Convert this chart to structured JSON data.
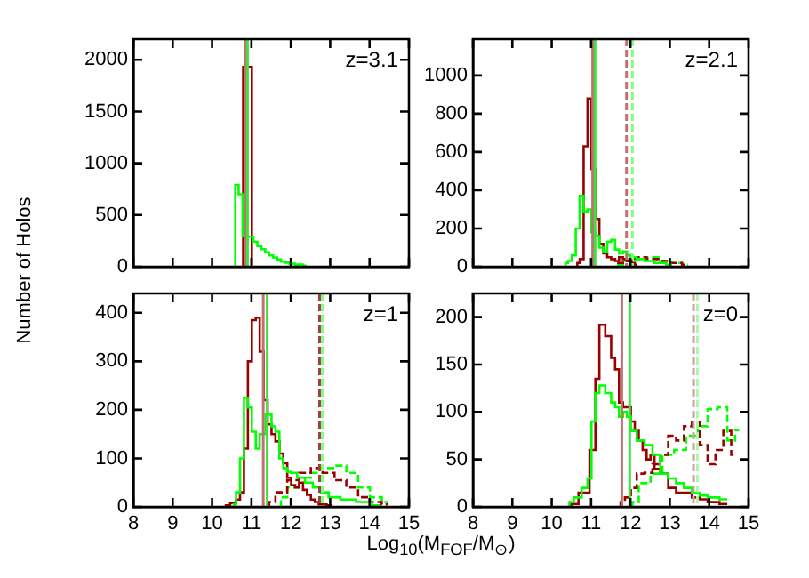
{
  "chart_data": [
    {
      "type": "step",
      "annotations": [
        "z=3.1"
      ],
      "ylabel": "Number of Holos",
      "xlim": [
        8,
        15
      ],
      "xticks": [
        8,
        9,
        10,
        11,
        12,
        13,
        14,
        15
      ],
      "ylim": [
        0,
        2200
      ],
      "yticks": [
        0,
        500,
        1000,
        1500,
        2000
      ],
      "tick_labels": "y",
      "series": [
        {
          "color": "#00ff00",
          "x": [
            10.58,
            10.6,
            10.75,
            10.8,
            11.0,
            11.1,
            11.2,
            11.3,
            11.4,
            11.5,
            11.6,
            11.7,
            11.8,
            11.9,
            12.0,
            12.2,
            12.4
          ],
          "values": [
            0,
            790,
            700,
            300,
            290,
            240,
            200,
            170,
            140,
            110,
            90,
            70,
            50,
            40,
            30,
            20,
            10
          ]
        },
        {
          "color": "#990000",
          "x": [
            10.78,
            10.8,
            10.9,
            11.0,
            11.02
          ],
          "values": [
            0,
            1930,
            1930,
            1930,
            0
          ]
        }
      ],
      "ref_lines": [
        {
          "axis": "x",
          "value": 10.85,
          "color": "#c07070",
          "line_style": "solid"
        },
        {
          "axis": "x",
          "value": 10.9,
          "color": "#40e040",
          "line_style": "solid"
        }
      ]
    },
    {
      "type": "step",
      "annotations": [
        "z=2.1"
      ],
      "xlim": [
        8,
        15
      ],
      "xticks": [
        8,
        9,
        10,
        11,
        12,
        13,
        14,
        15
      ],
      "ylim": [
        0,
        1190
      ],
      "yticks": [
        0,
        200,
        400,
        600,
        800,
        1000
      ],
      "tick_labels": "y",
      "series": [
        {
          "color": "#00ff00",
          "x": [
            10.34,
            10.36,
            10.46,
            10.56,
            10.66,
            10.76,
            10.86,
            10.96,
            11.06,
            11.16,
            11.26,
            11.36,
            11.46,
            11.56,
            11.66,
            11.76,
            11.86,
            11.96,
            12.06,
            12.26,
            12.46,
            12.76,
            13.06
          ],
          "values": [
            0,
            20,
            30,
            60,
            200,
            370,
            290,
            300,
            180,
            160,
            100,
            80,
            130,
            140,
            90,
            70,
            80,
            60,
            50,
            40,
            30,
            20,
            10
          ]
        },
        {
          "color": "#990000",
          "x": [
            10.64,
            10.66,
            10.76,
            10.86,
            10.96,
            11.06,
            11.16,
            11.26,
            11.36,
            11.46,
            11.56,
            11.66,
            11.76,
            11.86,
            11.96,
            12.06,
            12.16
          ],
          "values": [
            0,
            20,
            40,
            630,
            880,
            510,
            250,
            120,
            70,
            50,
            40,
            30,
            50,
            40,
            30,
            20,
            10
          ]
        },
        {
          "color": "#990000",
          "line_style": "dashed",
          "x": [
            11.66,
            11.96,
            12.26,
            12.56,
            12.86,
            13.16,
            13.46
          ],
          "values": [
            20,
            30,
            50,
            40,
            30,
            20,
            10
          ]
        },
        {
          "color": "#00ff00",
          "line_style": "dashed",
          "x": [
            11.66,
            11.96,
            12.26,
            12.56,
            12.86,
            13.16,
            13.46
          ],
          "values": [
            10,
            30,
            40,
            50,
            30,
            20,
            10
          ]
        }
      ],
      "ref_lines": [
        {
          "axis": "x",
          "value": 11.04,
          "color": "#c07070",
          "line_style": "solid"
        },
        {
          "axis": "x",
          "value": 11.1,
          "color": "#40e040",
          "line_style": "solid"
        },
        {
          "axis": "x",
          "value": 11.9,
          "color": "#c07070",
          "line_style": "dashed"
        },
        {
          "axis": "x",
          "value": 12.05,
          "color": "#80ff80",
          "line_style": "dashed"
        }
      ]
    },
    {
      "type": "step",
      "annotations": [
        "z=1"
      ],
      "xlabel": "Log$_{10}$(M$_{FOF}$/M$_{⊙}$)",
      "xlim": [
        8,
        15
      ],
      "xticks": [
        8,
        9,
        10,
        11,
        12,
        13,
        14,
        15
      ],
      "ylim": [
        0,
        440
      ],
      "yticks": [
        0,
        100,
        200,
        300,
        400
      ],
      "series": [
        {
          "color": "#00ff00",
          "x": [
            10.54,
            10.56,
            10.66,
            10.76,
            10.86,
            10.96,
            11.06,
            11.16,
            11.26,
            11.46,
            11.56,
            11.66,
            11.76,
            11.86,
            11.96,
            12.06,
            12.26,
            12.46,
            12.66,
            12.86,
            13.06,
            13.46,
            13.86,
            14.26
          ],
          "values": [
            0,
            5,
            30,
            100,
            225,
            205,
            155,
            120,
            150,
            190,
            166,
            155,
            100,
            80,
            72,
            70,
            60,
            50,
            40,
            30,
            20,
            15,
            10,
            3
          ]
        },
        {
          "color": "#990000",
          "x": [
            10.34,
            10.36,
            10.56,
            10.66,
            10.76,
            10.86,
            10.96,
            11.06,
            11.16,
            11.26,
            11.36,
            11.46,
            11.56,
            11.66,
            11.76,
            11.86,
            11.96,
            12.06,
            12.16,
            12.26,
            12.36,
            12.46,
            12.56,
            12.66,
            12.76,
            13.06
          ],
          "values": [
            0,
            3,
            8,
            15,
            30,
            120,
            300,
            385,
            390,
            320,
            220,
            170,
            150,
            135,
            110,
            90,
            60,
            45,
            40,
            50,
            35,
            25,
            15,
            10,
            5,
            3
          ]
        },
        {
          "color": "#990000",
          "line_style": "dashed",
          "x": [
            11.44,
            11.46,
            11.76,
            12.06,
            12.36,
            12.66,
            12.96,
            13.26,
            13.56,
            13.86,
            14.16,
            14.46
          ],
          "values": [
            0,
            10,
            30,
            55,
            70,
            80,
            70,
            55,
            40,
            20,
            10,
            5
          ]
        },
        {
          "color": "#00ff00",
          "line_style": "dashed",
          "x": [
            11.74,
            11.76,
            12.06,
            12.36,
            12.66,
            12.96,
            13.26,
            13.56,
            13.86,
            14.16,
            14.46
          ],
          "values": [
            0,
            20,
            40,
            60,
            70,
            80,
            85,
            70,
            40,
            20,
            10
          ]
        }
      ],
      "ref_lines": [
        {
          "axis": "x",
          "value": 11.3,
          "color": "#c07070",
          "line_style": "solid"
        },
        {
          "axis": "x",
          "value": 11.4,
          "color": "#40e040",
          "line_style": "solid"
        },
        {
          "axis": "x",
          "value": 12.73,
          "color": "#a04040",
          "line_style": "dashed"
        },
        {
          "axis": "x",
          "value": 12.8,
          "color": "#80ff80",
          "line_style": "dashed"
        }
      ]
    },
    {
      "type": "step",
      "annotations": [
        "z=0"
      ],
      "xlim": [
        8,
        15
      ],
      "xticks": [
        8,
        9,
        10,
        11,
        12,
        13,
        14,
        15
      ],
      "ylim": [
        0,
        225
      ],
      "yticks": [
        0,
        50,
        100,
        150,
        200
      ],
      "series": [
        {
          "color": "#00ff00",
          "x": [
            10.44,
            10.46,
            10.66,
            10.86,
            10.96,
            11.06,
            11.16,
            11.26,
            11.46,
            11.56,
            11.66,
            11.76,
            11.86,
            11.96,
            12.06,
            12.26,
            12.46,
            12.66,
            12.86,
            13.06,
            13.26,
            13.46,
            13.66,
            13.86,
            14.06,
            14.46
          ],
          "values": [
            0,
            5,
            10,
            20,
            30,
            90,
            120,
            128,
            120,
            110,
            105,
            95,
            100,
            95,
            80,
            70,
            65,
            55,
            35,
            30,
            25,
            20,
            15,
            12,
            10,
            8
          ]
        },
        {
          "color": "#990000",
          "x": [
            10.48,
            10.5,
            10.86,
            11.06,
            11.16,
            11.26,
            11.46,
            11.56,
            11.66,
            11.76,
            11.86,
            11.96,
            12.06,
            12.16,
            12.26,
            12.36,
            12.46,
            12.56,
            12.66,
            12.86,
            13.06,
            13.26,
            13.46,
            13.66,
            13.86,
            14.06,
            14.46
          ],
          "values": [
            0,
            3,
            15,
            60,
            135,
            192,
            180,
            157,
            145,
            110,
            105,
            105,
            90,
            80,
            70,
            60,
            50,
            55,
            40,
            35,
            20,
            15,
            15,
            10,
            8,
            5,
            3
          ]
        },
        {
          "color": "#990000",
          "line_style": "dashed",
          "x": [
            11.74,
            11.76,
            11.96,
            12.06,
            12.26,
            12.46,
            12.66,
            12.86,
            13.06,
            13.26,
            13.46,
            13.66,
            13.86,
            14.06,
            14.26,
            14.46,
            14.66
          ],
          "values": [
            0,
            5,
            10,
            20,
            35,
            36,
            45,
            55,
            75,
            70,
            85,
            89,
            65,
            45,
            60,
            80,
            55
          ]
        },
        {
          "color": "#00ff00",
          "line_style": "dashed",
          "x": [
            12.04,
            12.06,
            12.36,
            12.66,
            12.96,
            13.26,
            13.56,
            13.86,
            14.06,
            14.36,
            14.56,
            14.76
          ],
          "values": [
            0,
            5,
            25,
            35,
            55,
            60,
            75,
            85,
            103,
            105,
            70,
            81
          ]
        }
      ],
      "ref_lines": [
        {
          "axis": "x",
          "value": 11.78,
          "color": "#c07070",
          "line_style": "solid"
        },
        {
          "axis": "x",
          "value": 11.98,
          "color": "#40e040",
          "line_style": "solid"
        },
        {
          "axis": "x",
          "value": 13.6,
          "color": "#d0a0a0",
          "line_style": "dashed"
        },
        {
          "axis": "x",
          "value": 13.7,
          "color": "#a0ffa0",
          "line_style": "dashed"
        }
      ]
    }
  ]
}
